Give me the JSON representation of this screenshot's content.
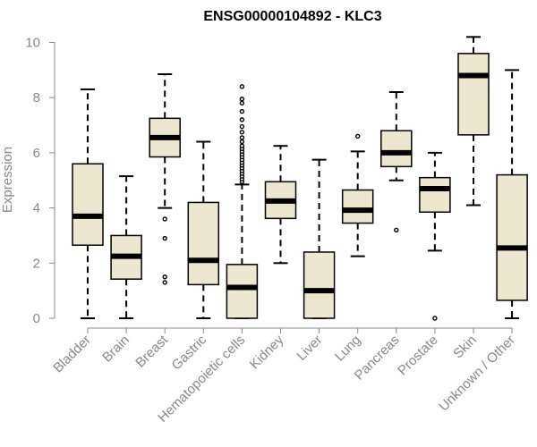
{
  "chart_data": {
    "type": "boxplot",
    "title": "ENSG00000104892 - KLC3",
    "xlabel": "",
    "ylabel": "Expression",
    "ylim": [
      0,
      10.3
    ],
    "yticks": [
      0,
      2,
      4,
      6,
      8,
      10
    ],
    "grid": false,
    "colors": {
      "box_fill": "#ede7cf",
      "stroke": "#000000",
      "axis": "#888888"
    },
    "categories": [
      "Bladder",
      "Brain",
      "Breast",
      "Gastric",
      "Hematopoietic cells",
      "Kidney",
      "Liver",
      "Lung",
      "Pancreas",
      "Prostate",
      "Skin",
      "Unknown / Other"
    ],
    "boxes": [
      {
        "name": "Bladder",
        "whisker_low": 0.0,
        "q1": 2.65,
        "median": 3.7,
        "q3": 5.6,
        "whisker_high": 8.3,
        "outliers": []
      },
      {
        "name": "Brain",
        "whisker_low": 0.0,
        "q1": 1.42,
        "median": 2.25,
        "q3": 3.0,
        "whisker_high": 5.15,
        "outliers": []
      },
      {
        "name": "Breast",
        "whisker_low": 4.0,
        "q1": 5.85,
        "median": 6.55,
        "q3": 7.25,
        "whisker_high": 8.85,
        "outliers": [
          3.6,
          2.9,
          1.5,
          1.3
        ]
      },
      {
        "name": "Gastric",
        "whisker_low": 0.0,
        "q1": 1.22,
        "median": 2.1,
        "q3": 4.2,
        "whisker_high": 6.4,
        "outliers": []
      },
      {
        "name": "Hematopoietic cells",
        "whisker_low": 0.0,
        "q1": 0.0,
        "median": 1.12,
        "q3": 1.95,
        "whisker_high": 4.85,
        "outliers": [
          4.95,
          5.05,
          5.15,
          5.25,
          5.35,
          5.45,
          5.55,
          5.65,
          5.75,
          5.85,
          5.95,
          6.05,
          6.15,
          6.25,
          6.4,
          6.55,
          6.75,
          6.95,
          7.2,
          7.5,
          7.8,
          7.95,
          8.4
        ]
      },
      {
        "name": "Kidney",
        "whisker_low": 2.0,
        "q1": 3.62,
        "median": 4.25,
        "q3": 4.95,
        "whisker_high": 6.25,
        "outliers": []
      },
      {
        "name": "Liver",
        "whisker_low": 0.0,
        "q1": 0.0,
        "median": 1.0,
        "q3": 2.4,
        "whisker_high": 5.75,
        "outliers": []
      },
      {
        "name": "Lung",
        "whisker_low": 2.25,
        "q1": 3.45,
        "median": 3.92,
        "q3": 4.65,
        "whisker_high": 6.05,
        "outliers": [
          6.6
        ]
      },
      {
        "name": "Pancreas",
        "whisker_low": 5.0,
        "q1": 5.5,
        "median": 6.0,
        "q3": 6.8,
        "whisker_high": 8.2,
        "outliers": [
          3.2
        ]
      },
      {
        "name": "Prostate",
        "whisker_low": 2.45,
        "q1": 3.85,
        "median": 4.7,
        "q3": 5.1,
        "whisker_high": 6.0,
        "outliers": [
          0.0
        ]
      },
      {
        "name": "Skin",
        "whisker_low": 4.1,
        "q1": 6.65,
        "median": 8.8,
        "q3": 9.6,
        "whisker_high": 10.2,
        "outliers": []
      },
      {
        "name": "Unknown / Other",
        "whisker_low": 0.0,
        "q1": 0.65,
        "median": 2.55,
        "q3": 5.2,
        "whisker_high": 9.0,
        "outliers": []
      }
    ]
  }
}
